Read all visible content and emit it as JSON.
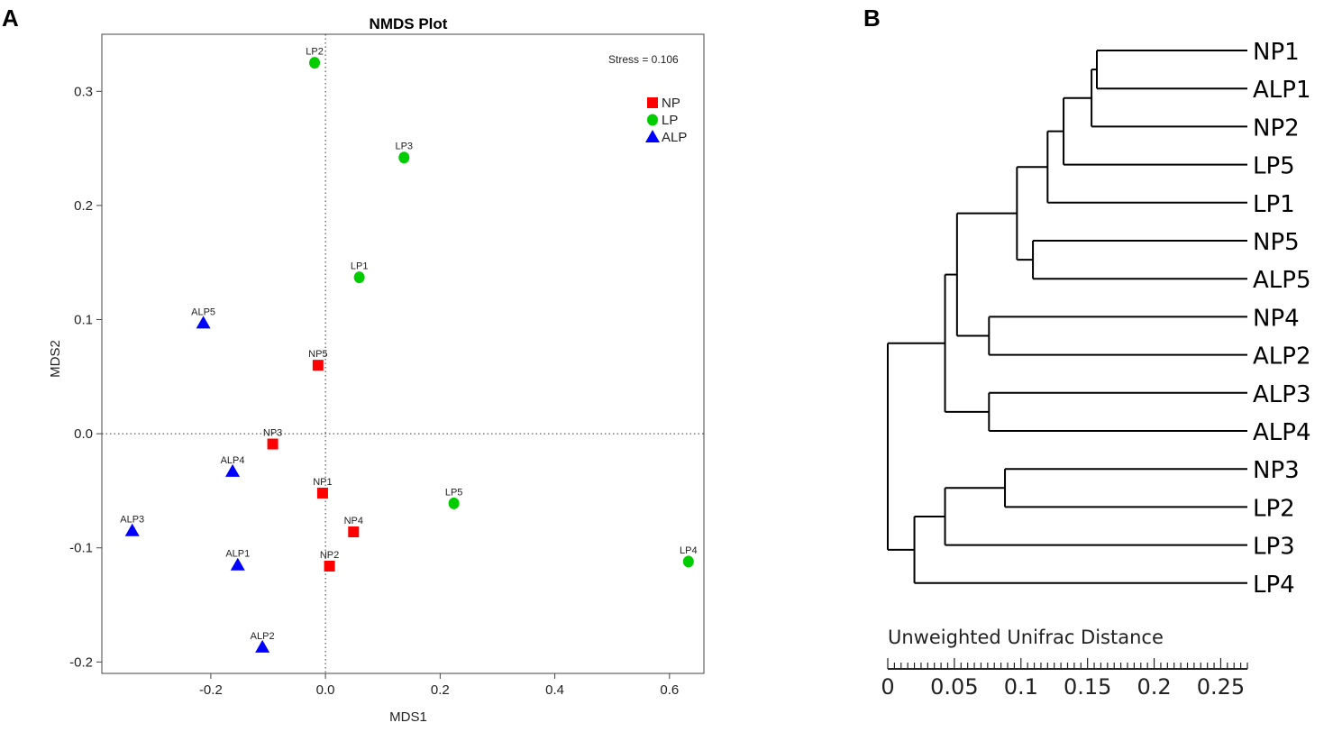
{
  "panels": {
    "a_letter": "A",
    "b_letter": "B"
  },
  "chart_data": [
    {
      "type": "scatter",
      "title": "NMDS Plot",
      "xlabel": "MDS1",
      "ylabel": "MDS2",
      "xlim": [
        -0.39,
        0.66
      ],
      "ylim": [
        -0.21,
        0.35
      ],
      "xticks": [
        -0.2,
        0.0,
        0.2,
        0.4,
        0.6
      ],
      "xtick_labels": [
        "-0.2",
        "0.0",
        "0.2",
        "0.4",
        "0.6"
      ],
      "yticks": [
        -0.2,
        -0.1,
        0.0,
        0.1,
        0.2,
        0.3
      ],
      "ytick_labels": [
        "-0.2",
        "-0.1",
        "0.0",
        "0.1",
        "0.2",
        "0.3"
      ],
      "stress_text": "Stress = 0.106",
      "reference_lines": {
        "x": 0,
        "y": 0
      },
      "legend_position": "top-right",
      "series": [
        {
          "name": "NP",
          "color": "#ff0000",
          "marker": "square",
          "points": [
            {
              "label": "NP1",
              "x": -0.005,
              "y": -0.052
            },
            {
              "label": "NP2",
              "x": 0.007,
              "y": -0.116
            },
            {
              "label": "NP3",
              "x": -0.092,
              "y": -0.009
            },
            {
              "label": "NP4",
              "x": 0.049,
              "y": -0.086
            },
            {
              "label": "NP5",
              "x": -0.013,
              "y": 0.06
            }
          ]
        },
        {
          "name": "LP",
          "color": "#00cc00",
          "marker": "circle",
          "points": [
            {
              "label": "LP1",
              "x": 0.059,
              "y": 0.137
            },
            {
              "label": "LP2",
              "x": -0.019,
              "y": 0.325
            },
            {
              "label": "LP3",
              "x": 0.137,
              "y": 0.242
            },
            {
              "label": "LP4",
              "x": 0.633,
              "y": -0.112
            },
            {
              "label": "LP5",
              "x": 0.224,
              "y": -0.061
            }
          ]
        },
        {
          "name": "ALP",
          "color": "#0000ff",
          "marker": "triangle",
          "points": [
            {
              "label": "ALP1",
              "x": -0.153,
              "y": -0.115
            },
            {
              "label": "ALP2",
              "x": -0.11,
              "y": -0.187
            },
            {
              "label": "ALP3",
              "x": -0.337,
              "y": -0.085
            },
            {
              "label": "ALP4",
              "x": -0.162,
              "y": -0.033
            },
            {
              "label": "ALP5",
              "x": -0.213,
              "y": 0.097
            }
          ]
        }
      ]
    },
    {
      "type": "dendrogram",
      "axis_title": "Unweighted Unifrac Distance",
      "xlim": [
        0,
        0.27
      ],
      "ticks": [
        0,
        0.05,
        0.1,
        0.15,
        0.2,
        0.25
      ],
      "tick_labels": [
        "0",
        "0.05",
        "0.1",
        "0.15",
        "0.2",
        "0.25"
      ],
      "minor_step": 0.005,
      "leaves": [
        "NP1",
        "ALP1",
        "NP2",
        "LP5",
        "LP1",
        "NP5",
        "ALP5",
        "NP4",
        "ALP2",
        "ALP3",
        "ALP4",
        "NP3",
        "LP2",
        "LP3",
        "LP4"
      ],
      "merges": [
        {
          "id": "m1",
          "children": [
            "NP1",
            "ALP1"
          ],
          "height": 0.157
        },
        {
          "id": "m2",
          "children": [
            "m1",
            "NP2"
          ],
          "height": 0.153
        },
        {
          "id": "m3",
          "children": [
            "m2",
            "LP5"
          ],
          "height": 0.132
        },
        {
          "id": "m4",
          "children": [
            "m3",
            "LP1"
          ],
          "height": 0.12
        },
        {
          "id": "m5",
          "children": [
            "NP5",
            "ALP5"
          ],
          "height": 0.109
        },
        {
          "id": "m6",
          "children": [
            "m4",
            "m5"
          ],
          "height": 0.097
        },
        {
          "id": "m7",
          "children": [
            "NP4",
            "ALP2"
          ],
          "height": 0.076
        },
        {
          "id": "m8",
          "children": [
            "m6",
            "m7"
          ],
          "height": 0.052
        },
        {
          "id": "m9",
          "children": [
            "ALP3",
            "ALP4"
          ],
          "height": 0.076
        },
        {
          "id": "m10",
          "children": [
            "m8",
            "m9"
          ],
          "height": 0.043
        },
        {
          "id": "m11",
          "children": [
            "NP3",
            "LP2"
          ],
          "height": 0.088
        },
        {
          "id": "m12",
          "children": [
            "m11",
            "LP3"
          ],
          "height": 0.043
        },
        {
          "id": "m13",
          "children": [
            "m12",
            "LP4"
          ],
          "height": 0.02
        },
        {
          "id": "root",
          "children": [
            "m10",
            "m13"
          ],
          "height": 0.0
        }
      ]
    }
  ]
}
